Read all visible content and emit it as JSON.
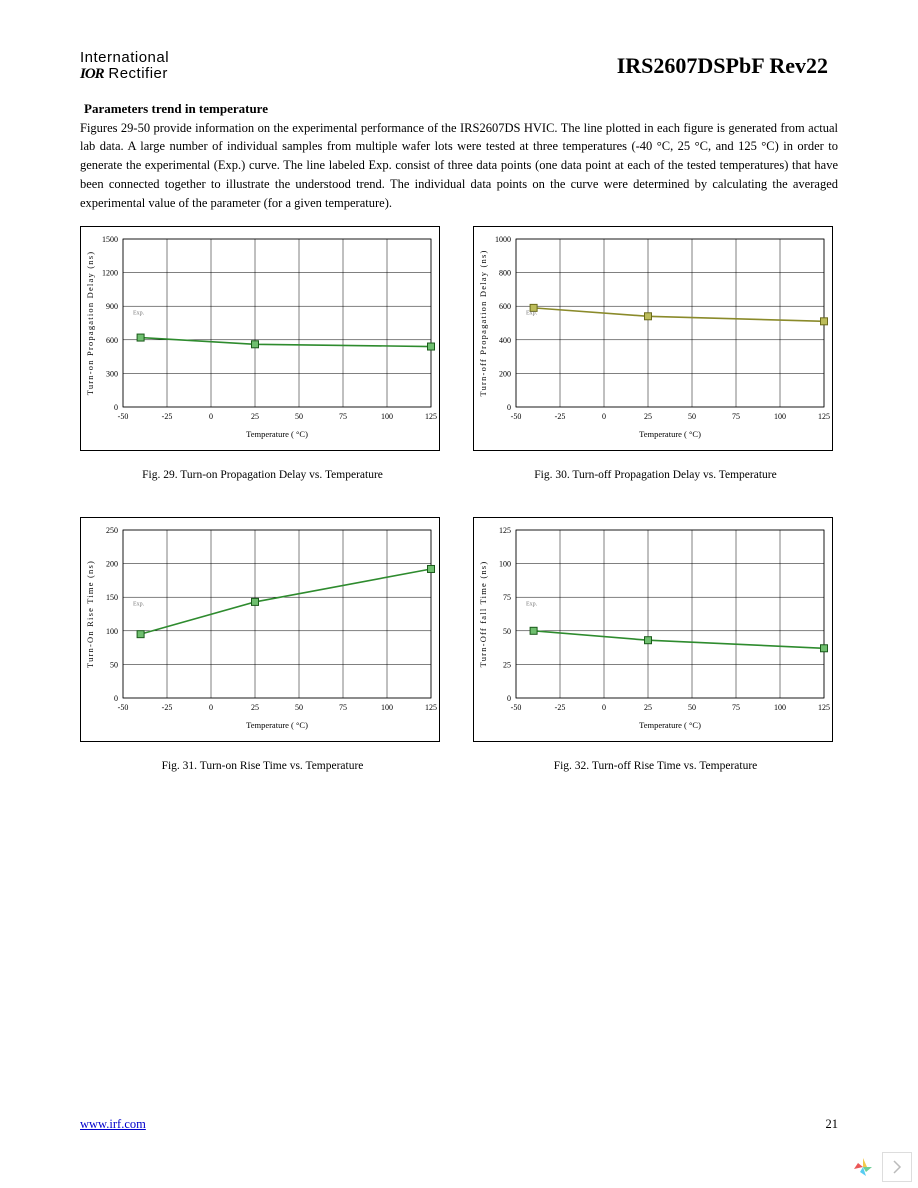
{
  "header": {
    "logo_line1": "International",
    "logo_ior": "IOR",
    "logo_line2": "Rectifier",
    "part_number": "IRS2607DSPbF Rev22"
  },
  "section_title": "Parameters trend in temperature",
  "body_text": "Figures 29-50 provide information on the experimental performance of the IRS2607DS HVIC.  The line plotted in each figure is generated from actual lab data. A large number of individual samples from multiple wafer lots were tested at three temperatures (-40 °C, 25 °C, and 125 °C) in order to generate the experimental (Exp.) curve.  The line labeled Exp. consist of three data points (one data point at each of the tested temperatures) that have been connected together to illustrate the understood trend.  The individual data points on the curve were determined by calculating the averaged experimental value of the parameter (for a given temperature).",
  "charts": {
    "fig29": {
      "caption": "Fig. 29.     Turn-on Propagation Delay vs. Temperature",
      "type": "line",
      "ylabel": "Turn-on Propagation Delay (ns)",
      "xlabel_pre": "Temperature (",
      "xlabel_post": "°C)",
      "xlim": [
        -50,
        125
      ],
      "xtick_step": 25,
      "ylim": [
        0,
        1500
      ],
      "ytick_step": 300,
      "series_color": "#2e8b2e",
      "marker_edge": "#1a5a1a",
      "marker_fill": "#6fbf6f",
      "grid_color": "#000000",
      "legend": "Exp.",
      "data_x": [
        -40,
        25,
        125
      ],
      "data_y": [
        620,
        560,
        540
      ]
    },
    "fig30": {
      "caption": "Fig. 30.     Turn-off Propagation Delay vs. Temperature",
      "type": "line",
      "ylabel": "Turn-off Propagation Delay (ns)",
      "xlabel_pre": "Temperature (",
      "xlabel_post": "°C)",
      "xlim": [
        -50,
        125
      ],
      "xtick_step": 25,
      "ylim": [
        0,
        1000
      ],
      "ytick_step": 200,
      "series_color": "#8a8a2a",
      "marker_edge": "#6a6a1a",
      "marker_fill": "#bcbc5a",
      "grid_color": "#000000",
      "legend": "Exp.",
      "data_x": [
        -40,
        25,
        125
      ],
      "data_y": [
        590,
        540,
        510
      ]
    },
    "fig31": {
      "caption": "Fig. 31.     Turn-on Rise Time vs. Temperature",
      "type": "line",
      "ylabel": "Turn-On Rise Time (ns)",
      "xlabel_pre": "Temperature (",
      "xlabel_post": "°C)",
      "xlim": [
        -50,
        125
      ],
      "xtick_step": 25,
      "ylim": [
        0,
        250
      ],
      "ytick_step": 50,
      "series_color": "#2e8b2e",
      "marker_edge": "#1a5a1a",
      "marker_fill": "#6fbf6f",
      "grid_color": "#000000",
      "legend": "Exp.",
      "data_x": [
        -40,
        25,
        125
      ],
      "data_y": [
        95,
        143,
        192
      ]
    },
    "fig32": {
      "caption": "Fig. 32.     Turn-off Rise Time vs. Temperature",
      "type": "line",
      "ylabel": "Turn-Off fall Time (ns)",
      "xlabel_pre": "Temperature (",
      "xlabel_post": "°C)",
      "xlim": [
        -50,
        125
      ],
      "xtick_step": 25,
      "ylim": [
        0,
        125
      ],
      "ytick_step": 25,
      "series_color": "#2e8b2e",
      "marker_edge": "#1a5a1a",
      "marker_fill": "#6fbf6f",
      "grid_color": "#000000",
      "legend": "Exp.",
      "data_x": [
        -40,
        25,
        125
      ],
      "data_y": [
        50,
        43,
        37
      ]
    }
  },
  "footer": {
    "link": "www.irf.com",
    "page": "21"
  }
}
